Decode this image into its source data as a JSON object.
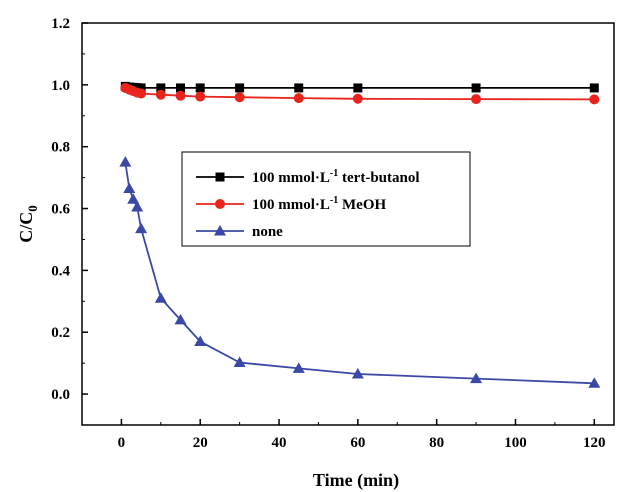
{
  "chart_data": {
    "type": "line",
    "xlabel": "Time (min)",
    "ylabel": {
      "main": "C/C",
      "sub": "0"
    },
    "xlim": [
      -10,
      125
    ],
    "ylim": [
      -0.1,
      1.2
    ],
    "x_ticks": [
      "0",
      "20",
      "40",
      "60",
      "80",
      "100",
      "120"
    ],
    "y_ticks": [
      "0.0",
      "0.2",
      "0.4",
      "0.6",
      "0.8",
      "1.0",
      "1.2"
    ],
    "x_tick_values": [
      0,
      20,
      40,
      60,
      80,
      100,
      120
    ],
    "y_tick_values": [
      0.0,
      0.2,
      0.4,
      0.6,
      0.8,
      1.0,
      1.2
    ],
    "legend_position": "center",
    "grid": false,
    "series": [
      {
        "name": "100 mmol·L-1 tert-butanol",
        "label_parts": {
          "pre": "100 mmol·L",
          "sup": "-1",
          "post": " tert-butanol"
        },
        "color": "#000000",
        "marker": "square",
        "x": [
          1,
          2,
          3,
          4,
          5,
          10,
          15,
          20,
          30,
          45,
          60,
          90,
          120
        ],
        "y": [
          0.995,
          0.993,
          0.992,
          0.991,
          0.99,
          0.99,
          0.99,
          0.99,
          0.99,
          0.99,
          0.99,
          0.99,
          0.99
        ]
      },
      {
        "name": "100 mmol·L-1 MeOH",
        "label_parts": {
          "pre": "100 mmol·L",
          "sup": "-1",
          "post": " MeOH"
        },
        "color": "#e8241c",
        "marker": "circle",
        "x": [
          1,
          2,
          3,
          4,
          5,
          10,
          15,
          20,
          30,
          45,
          60,
          90,
          120
        ],
        "y": [
          0.99,
          0.985,
          0.98,
          0.975,
          0.972,
          0.968,
          0.965,
          0.962,
          0.96,
          0.957,
          0.955,
          0.954,
          0.953
        ]
      },
      {
        "name": "none",
        "label_parts": {
          "pre": "none",
          "sup": "",
          "post": ""
        },
        "color": "#3b49a6",
        "marker": "triangle",
        "x": [
          1,
          2,
          3,
          4,
          5,
          10,
          15,
          20,
          30,
          45,
          60,
          90,
          120
        ],
        "y": [
          0.75,
          0.665,
          0.63,
          0.605,
          0.535,
          0.31,
          0.24,
          0.17,
          0.102,
          0.083,
          0.065,
          0.05,
          0.035
        ]
      }
    ]
  }
}
